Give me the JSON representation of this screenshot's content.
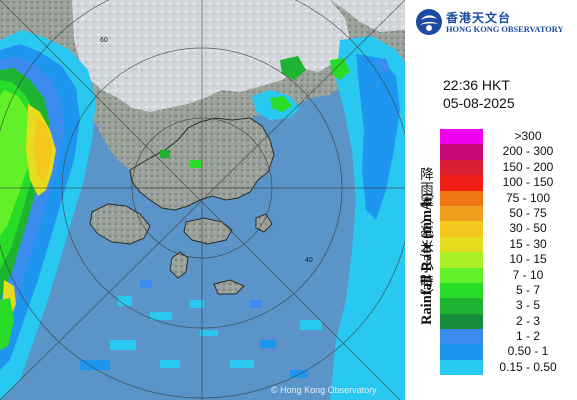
{
  "logo": {
    "chinese_name": "香港天文台",
    "english_name": "HONG KONG OBSERVATORY"
  },
  "timestamp": {
    "time": "22:36 HKT",
    "date": "05-08-2025"
  },
  "legend": {
    "title_chinese": "降雨率（毫米/小時）",
    "title_english": "Rainfall Rate (mm/h)",
    "items": [
      {
        "label": ">300",
        "color": "#f000f0"
      },
      {
        "label": "200 - 300",
        "color": "#c80a78"
      },
      {
        "label": "150 - 200",
        "color": "#dc1e32"
      },
      {
        "label": "100 - 150",
        "color": "#f01e14"
      },
      {
        "label": "75 - 100",
        "color": "#f07814"
      },
      {
        "label": "50 - 75",
        "color": "#f0a01e"
      },
      {
        "label": "30 - 50",
        "color": "#f5c81e"
      },
      {
        "label": "15 - 30",
        "color": "#e6dc1e"
      },
      {
        "label": "10 - 15",
        "color": "#aaf028"
      },
      {
        "label": "7 - 10",
        "color": "#64f028"
      },
      {
        "label": "5 - 7",
        "color": "#28dc28"
      },
      {
        "label": "3 - 5",
        "color": "#1eb432"
      },
      {
        "label": "2 - 3",
        "color": "#168c3c"
      },
      {
        "label": "1 - 2",
        "color": "#3c8cf0"
      },
      {
        "label": "0.50 - 1",
        "color": "#1e96f0"
      },
      {
        "label": "0.15 - 0.50",
        "color": "#28c8f0"
      }
    ]
  },
  "map": {
    "range_ring_labels": [
      "40",
      "60"
    ],
    "copyright": "© Hong Kong Observatory"
  },
  "colors": {
    "sea": "#5a94c8",
    "land": "#8a8f8a",
    "cloud": "#d6d9de",
    "brand": "#1b4aa1"
  }
}
